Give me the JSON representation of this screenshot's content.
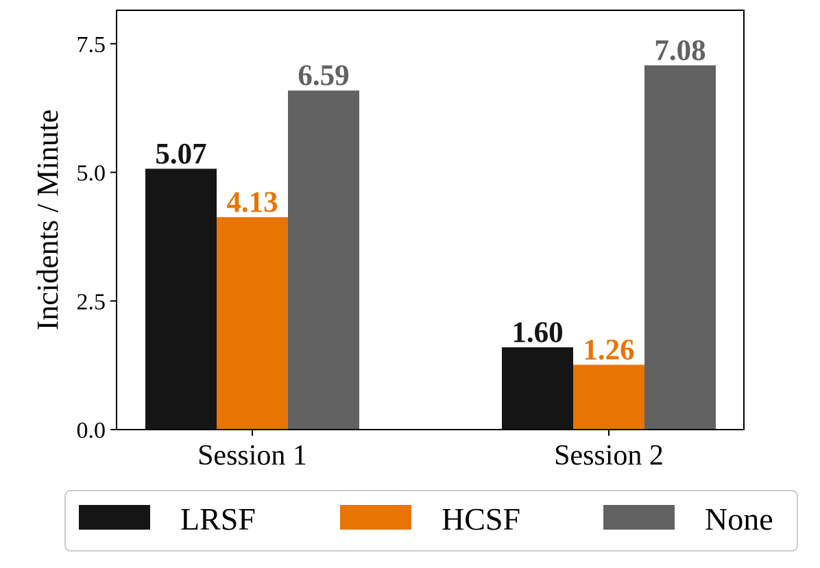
{
  "chart_data": {
    "type": "bar",
    "title": "",
    "xlabel": "",
    "ylabel": "Incidents / Minute",
    "ylim": [
      0,
      8.15
    ],
    "yticks": [
      0.0,
      2.5,
      5.0,
      7.5
    ],
    "ytick_labels": [
      "0.0",
      "2.5",
      "5.0",
      "7.5"
    ],
    "grid": false,
    "legend_position": "bottom",
    "categories": [
      "Session 1",
      "Session 2"
    ],
    "series": [
      {
        "name": "LRSF",
        "color": "#151515",
        "values": [
          5.07,
          1.6
        ],
        "labels": [
          "5.07",
          "1.60"
        ]
      },
      {
        "name": "HCSF",
        "color": "#e87502",
        "values": [
          4.13,
          1.26
        ],
        "labels": [
          "4.13",
          "1.26"
        ]
      },
      {
        "name": "None",
        "color": "#626262",
        "values": [
          6.59,
          7.08
        ],
        "labels": [
          "6.59",
          "7.08"
        ]
      }
    ]
  }
}
